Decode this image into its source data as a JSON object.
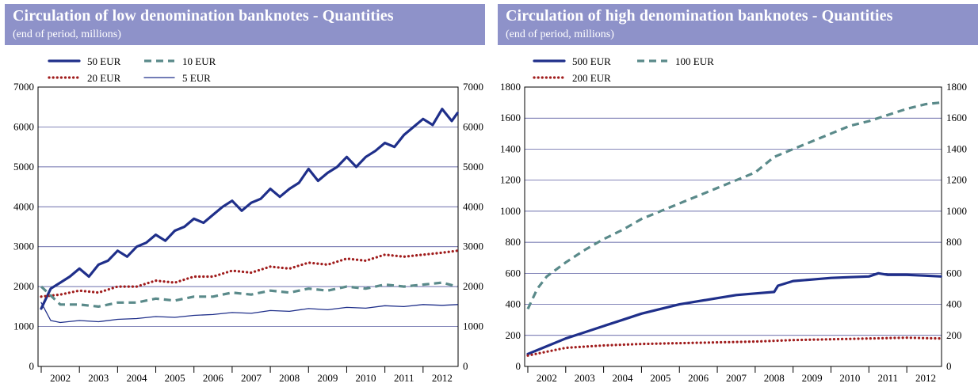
{
  "chart_data": [
    {
      "type": "line",
      "title": "Circulation of low denomination banknotes - Quantities",
      "subtitle": "(end of period, millions)",
      "ylim": [
        0,
        7000
      ],
      "yticks": [
        0,
        1000,
        2000,
        3000,
        4000,
        5000,
        6000,
        7000
      ],
      "xlim": [
        2001.917,
        2012.917
      ],
      "xtick_labels": [
        "2002",
        "2003",
        "2004",
        "2005",
        "2006",
        "2007",
        "2008",
        "2009",
        "2010",
        "2011",
        "2012"
      ],
      "grid": "horizontal",
      "legend_position": "top-left",
      "series": [
        {
          "name": "50 EUR",
          "color": "#1f2f8a",
          "style": "solid-thick",
          "x": [
            2002.0,
            2002.25,
            2002.5,
            2002.75,
            2003.0,
            2003.25,
            2003.5,
            2003.75,
            2004.0,
            2004.25,
            2004.5,
            2004.75,
            2005.0,
            2005.25,
            2005.5,
            2005.75,
            2006.0,
            2006.25,
            2006.5,
            2006.75,
            2007.0,
            2007.25,
            2007.5,
            2007.75,
            2008.0,
            2008.25,
            2008.5,
            2008.75,
            2009.0,
            2009.25,
            2009.5,
            2009.75,
            2010.0,
            2010.25,
            2010.5,
            2010.75,
            2011.0,
            2011.25,
            2011.5,
            2011.75,
            2012.0,
            2012.25,
            2012.5,
            2012.75,
            2012.9
          ],
          "y": [
            1450,
            1950,
            2100,
            2250,
            2450,
            2250,
            2550,
            2650,
            2900,
            2750,
            3000,
            3100,
            3300,
            3150,
            3400,
            3500,
            3700,
            3600,
            3800,
            4000,
            4150,
            3900,
            4100,
            4200,
            4450,
            4250,
            4450,
            4600,
            4950,
            4650,
            4850,
            5000,
            5250,
            5000,
            5250,
            5400,
            5600,
            5500,
            5800,
            6000,
            6200,
            6050,
            6450,
            6150,
            6350
          ]
        },
        {
          "name": "20 EUR",
          "color": "#a01c1c",
          "style": "dotted",
          "x": [
            2002.0,
            2002.5,
            2003.0,
            2003.5,
            2004.0,
            2004.5,
            2005.0,
            2005.5,
            2006.0,
            2006.5,
            2007.0,
            2007.5,
            2008.0,
            2008.5,
            2009.0,
            2009.5,
            2010.0,
            2010.5,
            2011.0,
            2011.5,
            2012.0,
            2012.5,
            2012.9
          ],
          "y": [
            1750,
            1800,
            1900,
            1850,
            2000,
            2000,
            2150,
            2100,
            2250,
            2250,
            2400,
            2350,
            2500,
            2450,
            2600,
            2550,
            2700,
            2650,
            2800,
            2750,
            2800,
            2850,
            2900
          ]
        },
        {
          "name": "10 EUR",
          "color": "#5a8a8a",
          "style": "dashed-thick",
          "x": [
            2002.0,
            2002.5,
            2003.0,
            2003.5,
            2004.0,
            2004.5,
            2005.0,
            2005.5,
            2006.0,
            2006.5,
            2007.0,
            2007.5,
            2008.0,
            2008.5,
            2009.0,
            2009.5,
            2010.0,
            2010.5,
            2011.0,
            2011.5,
            2012.0,
            2012.5,
            2012.9
          ],
          "y": [
            2000,
            1550,
            1550,
            1500,
            1600,
            1600,
            1700,
            1650,
            1750,
            1750,
            1850,
            1800,
            1900,
            1850,
            1950,
            1900,
            2000,
            1950,
            2050,
            2000,
            2050,
            2100,
            2000
          ]
        },
        {
          "name": "5 EUR",
          "color": "#1f2f8a",
          "style": "solid-thin",
          "x": [
            2002.0,
            2002.25,
            2002.5,
            2003.0,
            2003.5,
            2004.0,
            2004.5,
            2005.0,
            2005.5,
            2006.0,
            2006.5,
            2007.0,
            2007.5,
            2008.0,
            2008.5,
            2009.0,
            2009.5,
            2010.0,
            2010.5,
            2011.0,
            2011.5,
            2012.0,
            2012.5,
            2012.9
          ],
          "y": [
            1600,
            1150,
            1100,
            1150,
            1120,
            1180,
            1200,
            1250,
            1230,
            1280,
            1300,
            1350,
            1330,
            1400,
            1380,
            1450,
            1420,
            1480,
            1460,
            1520,
            1500,
            1550,
            1530,
            1550
          ]
        }
      ]
    },
    {
      "type": "line",
      "title": "Circulation of high denomination banknotes - Quantities",
      "subtitle": "(end of period, millions)",
      "ylim": [
        0,
        1800
      ],
      "yticks": [
        0,
        200,
        400,
        600,
        800,
        1000,
        1200,
        1400,
        1600,
        1800
      ],
      "xlim": [
        2001.917,
        2012.917
      ],
      "xtick_labels": [
        "2002",
        "2003",
        "2004",
        "2005",
        "2006",
        "2007",
        "2008",
        "2009",
        "2010",
        "2011",
        "2012"
      ],
      "grid": "horizontal",
      "legend_position": "top-left",
      "series": [
        {
          "name": "500 EUR",
          "color": "#1f2f8a",
          "style": "solid-thick",
          "x": [
            2002.0,
            2002.5,
            2003.0,
            2003.5,
            2004.0,
            2004.5,
            2005.0,
            2005.5,
            2006.0,
            2006.5,
            2007.0,
            2007.5,
            2008.0,
            2008.5,
            2008.6,
            2009.0,
            2009.5,
            2010.0,
            2010.5,
            2011.0,
            2011.25,
            2011.5,
            2012.0,
            2012.5,
            2012.9
          ],
          "y": [
            80,
            130,
            180,
            220,
            260,
            300,
            340,
            370,
            400,
            420,
            440,
            460,
            470,
            480,
            520,
            550,
            560,
            570,
            575,
            580,
            600,
            590,
            590,
            585,
            580
          ]
        },
        {
          "name": "200 EUR",
          "color": "#a01c1c",
          "style": "dotted",
          "x": [
            2002.0,
            2003.0,
            2004.0,
            2005.0,
            2006.0,
            2007.0,
            2008.0,
            2009.0,
            2010.0,
            2011.0,
            2012.0,
            2012.9
          ],
          "y": [
            70,
            120,
            135,
            145,
            150,
            155,
            160,
            170,
            175,
            180,
            185,
            180
          ]
        },
        {
          "name": "100 EUR",
          "color": "#5a8a8a",
          "style": "dashed-thick",
          "x": [
            2002.0,
            2002.25,
            2002.5,
            2003.0,
            2003.5,
            2004.0,
            2004.5,
            2005.0,
            2005.5,
            2006.0,
            2006.5,
            2007.0,
            2007.5,
            2008.0,
            2008.5,
            2009.0,
            2009.5,
            2010.0,
            2010.5,
            2011.0,
            2011.5,
            2012.0,
            2012.5,
            2012.9
          ],
          "y": [
            370,
            500,
            580,
            670,
            750,
            820,
            880,
            950,
            1000,
            1050,
            1100,
            1150,
            1200,
            1250,
            1350,
            1400,
            1450,
            1500,
            1550,
            1580,
            1620,
            1660,
            1690,
            1700
          ]
        }
      ]
    }
  ]
}
